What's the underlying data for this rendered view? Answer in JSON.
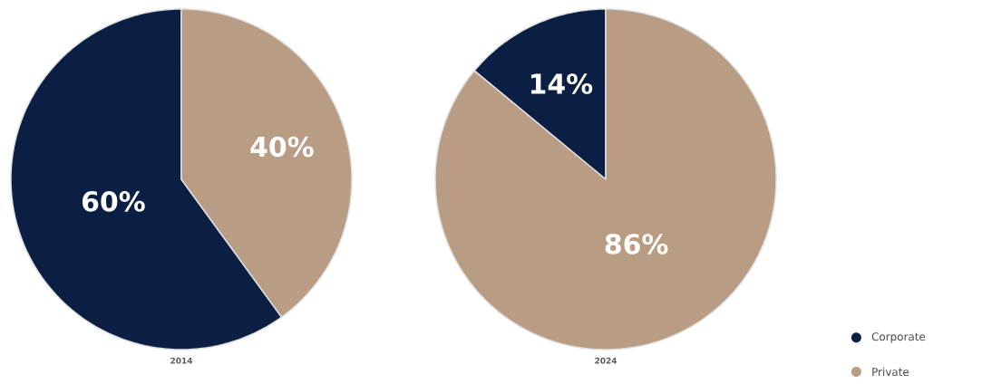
{
  "chart_data": [
    {
      "type": "pie",
      "title": "2014",
      "categories": [
        null,
        null
      ],
      "values": [
        60,
        40
      ],
      "colors": [
        "#0b1f44",
        "#b99c84"
      ],
      "value_labels": [
        "60%",
        "40%"
      ]
    },
    {
      "type": "pie",
      "title": "2024",
      "categories": [
        "Corporate",
        "Private"
      ],
      "values": [
        14,
        86
      ],
      "colors": [
        "#0b1f44",
        "#b99c84"
      ],
      "value_labels": [
        "14%",
        "86%"
      ],
      "legend": "bottom right"
    }
  ]
}
